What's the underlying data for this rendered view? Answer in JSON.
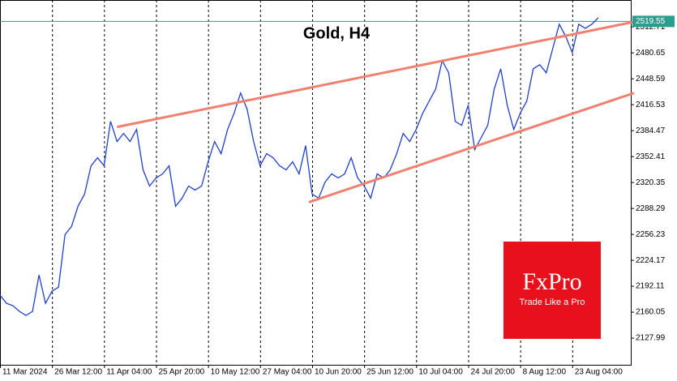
{
  "chart_data": {
    "type": "line",
    "title": "Gold, H4",
    "series": [
      {
        "name": "Gold",
        "color": "#1f3fcf",
        "values": [
          2181,
          2171,
          2168,
          2161,
          2156,
          2161,
          2206,
          2171,
          2186,
          2191,
          2256,
          2266,
          2291,
          2306,
          2341,
          2351,
          2341,
          2396,
          2371,
          2381,
          2371,
          2386,
          2336,
          2316,
          2326,
          2331,
          2341,
          2291,
          2301,
          2316,
          2311,
          2316,
          2346,
          2371,
          2356,
          2386,
          2406,
          2431,
          2411,
          2371,
          2341,
          2356,
          2351,
          2341,
          2336,
          2346,
          2331,
          2366,
          2306,
          2301,
          2321,
          2331,
          2326,
          2331,
          2351,
          2326,
          2316,
          2301,
          2331,
          2326,
          2336,
          2356,
          2381,
          2371,
          2386,
          2406,
          2421,
          2436,
          2471,
          2456,
          2396,
          2391,
          2416,
          2361,
          2376,
          2391,
          2436,
          2461,
          2416,
          2386,
          2406,
          2421,
          2461,
          2466,
          2456,
          2486,
          2516,
          2501,
          2481,
          2516,
          2511,
          2516,
          2524
        ]
      }
    ],
    "xlim": [
      0,
      97
    ],
    "ylim": [
      2095,
      2546
    ],
    "xticks": [
      {
        "value": 0,
        "label": "11 Mar 2024"
      },
      {
        "value": 8,
        "label": "26 Mar 12:00"
      },
      {
        "value": 16,
        "label": "11 Apr 04:00"
      },
      {
        "value": 24,
        "label": "25 Apr 20:00"
      },
      {
        "value": 32,
        "label": "10 May 12:00"
      },
      {
        "value": 40,
        "label": "27 May 04:00"
      },
      {
        "value": 48,
        "label": "10 Jun 20:00"
      },
      {
        "value": 56,
        "label": "25 Jun 12:00"
      },
      {
        "value": 64,
        "label": "10 Jul 04:00"
      },
      {
        "value": 72,
        "label": "24 Jul 20:00"
      },
      {
        "value": 80,
        "label": "8 Aug 12:00"
      },
      {
        "value": 88,
        "label": "23 Aug 04:00"
      }
    ],
    "yticks": [
      2127.99,
      2160.05,
      2192.11,
      2224.17,
      2256.23,
      2288.29,
      2320.35,
      2352.41,
      2384.47,
      2416.53,
      2448.59,
      2480.65,
      2512.71
    ],
    "grid": true,
    "last_price": 2519.55,
    "trendlines": [
      {
        "color": "#f08070",
        "x": [
          18,
          97.5
        ],
        "y": [
          2389,
          2519
        ]
      },
      {
        "color": "#f08070",
        "x": [
          47.5,
          97.5
        ],
        "y": [
          2296,
          2431
        ]
      }
    ],
    "logo": {
      "brand": "FxPro",
      "tagline": "Trade Like a Pro"
    }
  }
}
